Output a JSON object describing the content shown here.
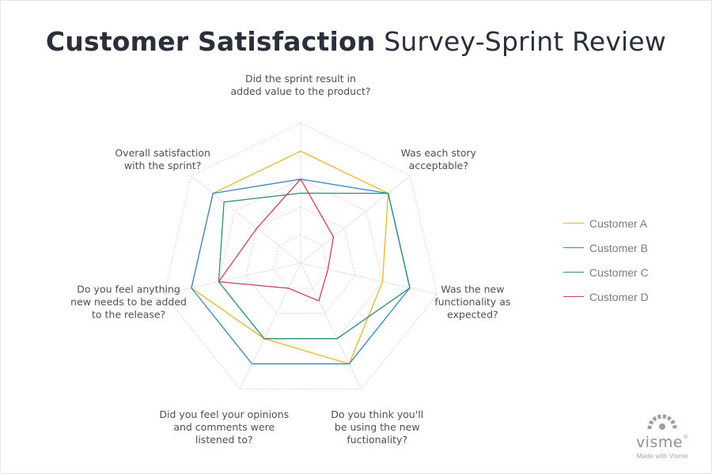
{
  "title": {
    "bold": "Customer Satisfaction",
    "regular": " Survey-Sprint Review"
  },
  "chart_data": {
    "type": "radar",
    "title": "Customer Satisfaction Survey-Sprint Review",
    "axes": [
      [
        "Did the sprint result in",
        "added value to the product?"
      ],
      [
        "Was each story",
        "acceptable?"
      ],
      [
        "Was the new",
        "functionality as",
        "expected?"
      ],
      [
        "Do you think you'll",
        "be using the new",
        "fuctionality?"
      ],
      [
        "Did you feel your opinions",
        "and comments were",
        "listened to?"
      ],
      [
        "Do you feel anything",
        "new needs to be added",
        "to the release?"
      ],
      [
        "Overall satisfaction",
        "with the sprint?"
      ]
    ],
    "range": [
      0,
      5
    ],
    "grid_levels": 5,
    "series": [
      {
        "name": "Customer A",
        "color": "#e6b72c",
        "values": [
          4,
          4,
          3,
          4,
          3,
          4,
          4
        ]
      },
      {
        "name": "Customer B",
        "color": "#3d86b9",
        "values": [
          3,
          4,
          4,
          4,
          4,
          4,
          4
        ]
      },
      {
        "name": "Customer C",
        "color": "#2e8b7e",
        "values": [
          2.5,
          4,
          4,
          3,
          3,
          3,
          3.5
        ]
      },
      {
        "name": "Customer D",
        "color": "#c4464f",
        "values": [
          3,
          1.5,
          1,
          1.5,
          1,
          3,
          2
        ]
      }
    ],
    "legend": "right"
  },
  "logo": {
    "word": "visme",
    "reg": "®",
    "tagline": "Made with Visme"
  }
}
